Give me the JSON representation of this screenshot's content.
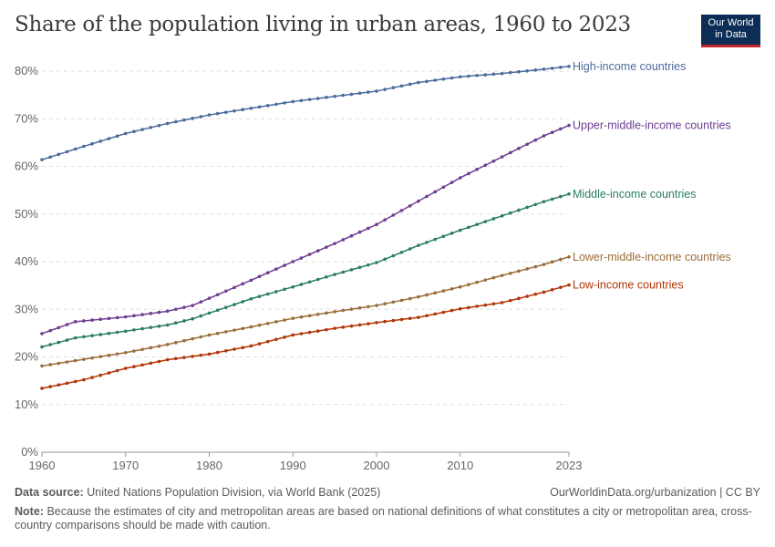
{
  "title": "Share of the population living in urban areas, 1960 to 2023",
  "logo": {
    "line1": "Our World",
    "line2": "in Data",
    "background": "#0c2d55",
    "accent": "#c5272f"
  },
  "footer": {
    "source_label": "Data source:",
    "source_text": "United Nations Population Division, via World Bank (2025)",
    "url": "OurWorldinData.org/urbanization | CC BY",
    "note_label": "Note:",
    "note_text": "Because the estimates of city and metropolitan areas are based on national definitions of what constitutes a city or metropolitan area, cross-country comparisons should be made with caution."
  },
  "chart_data": {
    "type": "line",
    "xlim": [
      1960,
      2023
    ],
    "ylim": [
      0,
      80
    ],
    "yticks": [
      0,
      10,
      20,
      30,
      40,
      50,
      60,
      70,
      80
    ],
    "ytick_labels": [
      "0%",
      "10%",
      "20%",
      "30%",
      "40%",
      "50%",
      "60%",
      "70%",
      "80%"
    ],
    "xticks": [
      1960,
      1970,
      1980,
      1990,
      2000,
      2010,
      2023
    ],
    "xtick_labels": [
      "1960",
      "1970",
      "1980",
      "1990",
      "2000",
      "2010",
      "2023"
    ],
    "grid": "horizontal dashed",
    "legend": "inline labels at right end of lines",
    "series": [
      {
        "name": "High-income countries",
        "color": "#4c6a9c",
        "points": [
          [
            1960,
            61.4
          ],
          [
            1965,
            64.2
          ],
          [
            1970,
            66.9
          ],
          [
            1975,
            69.0
          ],
          [
            1980,
            70.8
          ],
          [
            1985,
            72.2
          ],
          [
            1990,
            73.6
          ],
          [
            1995,
            74.7
          ],
          [
            2000,
            75.8
          ],
          [
            2005,
            77.6
          ],
          [
            2010,
            78.8
          ],
          [
            2015,
            79.5
          ],
          [
            2020,
            80.4
          ],
          [
            2023,
            81.0
          ]
        ]
      },
      {
        "name": "Upper-middle-income countries",
        "color": "#6d3e91",
        "points": [
          [
            1960,
            24.9
          ],
          [
            1964,
            27.4
          ],
          [
            1970,
            28.4
          ],
          [
            1975,
            29.6
          ],
          [
            1978,
            30.8
          ],
          [
            1980,
            32.3
          ],
          [
            1985,
            36.1
          ],
          [
            1990,
            40.0
          ],
          [
            1995,
            43.8
          ],
          [
            2000,
            47.8
          ],
          [
            2005,
            52.7
          ],
          [
            2010,
            57.6
          ],
          [
            2015,
            62.0
          ],
          [
            2020,
            66.4
          ],
          [
            2023,
            68.6
          ]
        ]
      },
      {
        "name": "Middle-income countries",
        "color": "#2a7d67",
        "points": [
          [
            1960,
            22.1
          ],
          [
            1964,
            24.0
          ],
          [
            1970,
            25.4
          ],
          [
            1975,
            26.7
          ],
          [
            1978,
            28.0
          ],
          [
            1980,
            29.2
          ],
          [
            1985,
            32.2
          ],
          [
            1990,
            34.7
          ],
          [
            1995,
            37.3
          ],
          [
            2000,
            39.8
          ],
          [
            2005,
            43.4
          ],
          [
            2010,
            46.6
          ],
          [
            2015,
            49.6
          ],
          [
            2020,
            52.6
          ],
          [
            2023,
            54.2
          ]
        ]
      },
      {
        "name": "Lower-middle-income countries",
        "color": "#996d39",
        "points": [
          [
            1960,
            18.1
          ],
          [
            1965,
            19.5
          ],
          [
            1970,
            20.9
          ],
          [
            1975,
            22.6
          ],
          [
            1980,
            24.6
          ],
          [
            1985,
            26.3
          ],
          [
            1990,
            28.1
          ],
          [
            1995,
            29.5
          ],
          [
            2000,
            30.8
          ],
          [
            2005,
            32.6
          ],
          [
            2010,
            34.7
          ],
          [
            2015,
            37.1
          ],
          [
            2020,
            39.4
          ],
          [
            2023,
            41.0
          ]
        ]
      },
      {
        "name": "Low-income countries",
        "color": "#b13507",
        "points": [
          [
            1960,
            13.4
          ],
          [
            1965,
            15.2
          ],
          [
            1970,
            17.6
          ],
          [
            1975,
            19.4
          ],
          [
            1980,
            20.6
          ],
          [
            1985,
            22.3
          ],
          [
            1990,
            24.6
          ],
          [
            1995,
            26.0
          ],
          [
            2000,
            27.2
          ],
          [
            2005,
            28.3
          ],
          [
            2010,
            30.1
          ],
          [
            2015,
            31.4
          ],
          [
            2020,
            33.6
          ],
          [
            2023,
            35.1
          ]
        ]
      }
    ]
  }
}
